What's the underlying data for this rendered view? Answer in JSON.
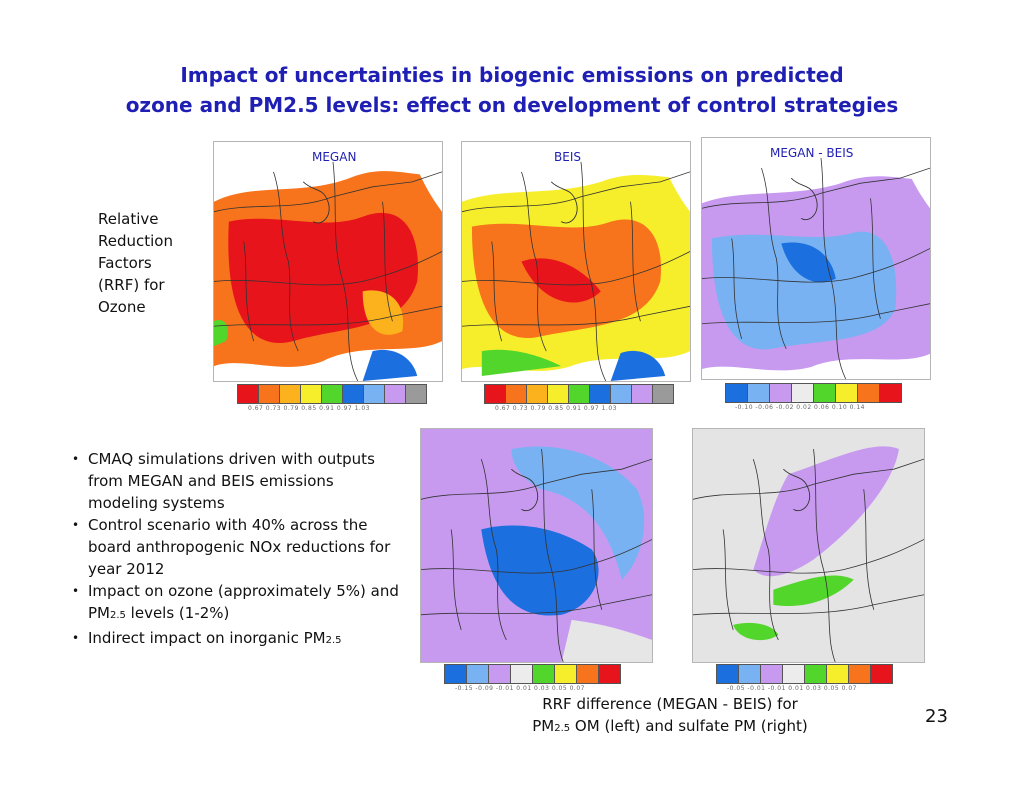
{
  "slide": {
    "title_line1": "Impact of uncertainties in biogenic emissions on predicted",
    "title_line2": "ozone and PM2.5 levels: effect on development of control strategies",
    "side_label": [
      "Relative",
      "Reduction",
      "Factors",
      "(RRF) for",
      "Ozone"
    ],
    "page_number": "23"
  },
  "maps": {
    "megan": {
      "label": "MEGAN",
      "ticks": "0.67  0.73  0.79  0.85  0.91  0.97  1.03"
    },
    "beis": {
      "label": "BEIS",
      "ticks": "0.67  0.73  0.79  0.85  0.91  0.97  1.03"
    },
    "diff": {
      "label": "MEGAN - BEIS",
      "ticks": "-0.10  -0.06  -0.02  0.02  0.06  0.10  0.14"
    },
    "om_ticks": "-0.15  -0.09  -0.01  0.01  0.03  0.05  0.07",
    "sulfate_ticks": "-0.05  -0.01  -0.01  0.01  0.03  0.05  0.07"
  },
  "colorbars": {
    "ozone": [
      "#e8141b",
      "#f7741c",
      "#fbb21c",
      "#f6ee2a",
      "#53d62c",
      "#1b6fde",
      "#78b2f2",
      "#c79af0",
      "#9a9a9a"
    ],
    "diff": [
      "#1b6fde",
      "#78b2f2",
      "#c79af0",
      "#ececec",
      "#53d62c",
      "#f6ee2a",
      "#f7741c",
      "#e8141b"
    ]
  },
  "bullets": [
    {
      "text": "CMAQ simulations driven with outputs from MEGAN and BEIS emissions modeling systems"
    },
    {
      "text": "Control scenario with 40% across the board anthropogenic NOx reductions for year 2012"
    },
    {
      "pre": "Impact on ozone (approximately 5%) and PM",
      "sub": "2.5",
      "post": " levels (1-2%)"
    },
    {
      "pre": "Indirect impact on inorganic PM",
      "sub": "2.5",
      "post": ""
    }
  ],
  "caption": {
    "line1": "RRF difference (MEGAN - BEIS) for",
    "pre": "PM",
    "sub": "2.5",
    "post": " OM (left) and sulfate PM (right)"
  }
}
